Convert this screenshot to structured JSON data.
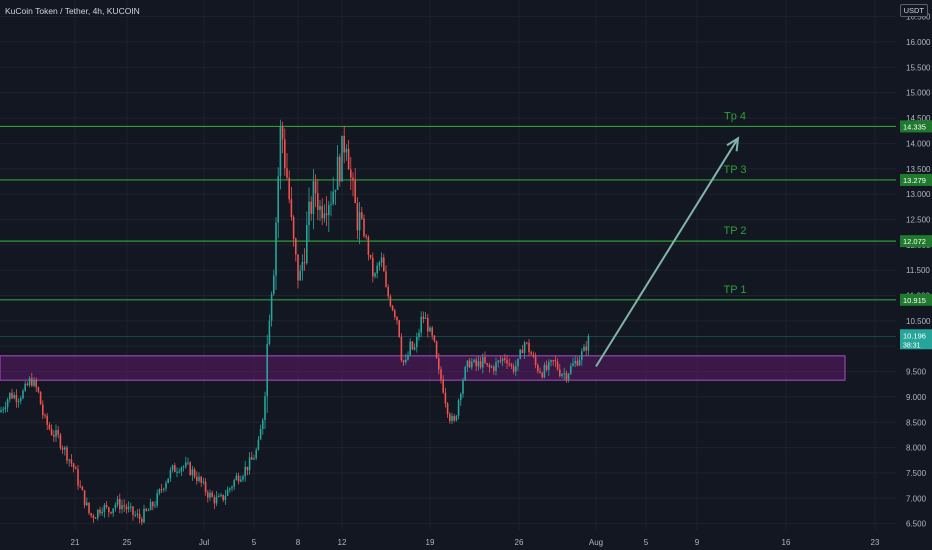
{
  "symbol": {
    "title": "KuCoin Token / Tether, 4h, KUCOIN"
  },
  "price_axis": {
    "currency": "USDT"
  },
  "colors": {
    "background": "#131722",
    "grid": "#1e222d",
    "axis_text": "#b2b5be",
    "up_candle": "#26a69a",
    "down_candle": "#ef5350",
    "tp_line": "#2e9e3a",
    "tp_label_bg": "#1f7a2e",
    "zone_fill": "#5b1a66",
    "zone_border": "#b04dc8",
    "arrow": "#7fb5a8",
    "current_price_bg": "#26a69a"
  },
  "chart_data": {
    "type": "candlestick",
    "title": "KuCoin Token / Tether, 4h, KUCOIN",
    "ylabel": "USDT",
    "ylim": [
      6.4,
      16.5
    ],
    "y_ticks": [
      "16.500",
      "16.000",
      "15.500",
      "15.000",
      "14.500",
      "14.000",
      "13.500",
      "13.000",
      "12.500",
      "12.000",
      "11.500",
      "11.000",
      "10.500",
      "10.000",
      "9.500",
      "9.000",
      "8.500",
      "8.000",
      "7.500",
      "7.000",
      "6.500"
    ],
    "x_ticks": [
      "21",
      "25",
      "Jul",
      "5",
      "8",
      "12",
      "19",
      "26",
      "Aug",
      "5",
      "9",
      "16",
      "23"
    ],
    "price_path": [
      [
        0,
        8.7
      ],
      [
        4,
        8.85
      ],
      [
        10,
        9.05
      ],
      [
        18,
        9.0
      ],
      [
        24,
        9.1
      ],
      [
        31,
        9.35
      ],
      [
        38,
        9.1
      ],
      [
        44,
        8.55
      ],
      [
        52,
        8.3
      ],
      [
        58,
        8.2
      ],
      [
        66,
        7.9
      ],
      [
        74,
        7.6
      ],
      [
        80,
        7.2
      ],
      [
        84,
        7.0
      ],
      [
        90,
        6.65
      ],
      [
        96,
        6.7
      ],
      [
        102,
        6.85
      ],
      [
        108,
        6.75
      ],
      [
        116,
        6.9
      ],
      [
        124,
        6.85
      ],
      [
        132,
        6.7
      ],
      [
        140,
        6.6
      ],
      [
        148,
        6.75
      ],
      [
        156,
        6.95
      ],
      [
        164,
        7.3
      ],
      [
        172,
        7.55
      ],
      [
        180,
        7.65
      ],
      [
        188,
        7.6
      ],
      [
        196,
        7.45
      ],
      [
        204,
        7.2
      ],
      [
        212,
        7.0
      ],
      [
        220,
        6.95
      ],
      [
        228,
        7.15
      ],
      [
        236,
        7.4
      ],
      [
        244,
        7.55
      ],
      [
        252,
        7.75
      ],
      [
        258,
        8.0
      ],
      [
        262,
        8.5
      ],
      [
        266,
        9.6
      ],
      [
        270,
        11.0
      ],
      [
        274,
        11.7
      ],
      [
        278,
        13.3
      ],
      [
        281,
        14.45
      ],
      [
        284,
        13.8
      ],
      [
        288,
        13.2
      ],
      [
        292,
        12.2
      ],
      [
        296,
        11.6
      ],
      [
        300,
        11.3
      ],
      [
        304,
        11.9
      ],
      [
        308,
        12.4
      ],
      [
        312,
        12.9
      ],
      [
        316,
        13.1
      ],
      [
        320,
        12.7
      ],
      [
        324,
        12.9
      ],
      [
        328,
        12.95
      ],
      [
        332,
        13.0
      ],
      [
        336,
        13.4
      ],
      [
        340,
        13.6
      ],
      [
        344,
        14.0
      ],
      [
        347,
        14.2
      ],
      [
        350,
        13.4
      ],
      [
        354,
        12.8
      ],
      [
        358,
        12.5
      ],
      [
        362,
        12.4
      ],
      [
        366,
        12.1
      ],
      [
        370,
        11.7
      ],
      [
        374,
        11.3
      ],
      [
        378,
        11.6
      ],
      [
        382,
        11.7
      ],
      [
        386,
        11.1
      ],
      [
        390,
        10.9
      ],
      [
        394,
        10.7
      ],
      [
        398,
        10.5
      ],
      [
        402,
        9.7
      ],
      [
        406,
        9.65
      ],
      [
        410,
        10.0
      ],
      [
        414,
        9.9
      ],
      [
        418,
        10.2
      ],
      [
        422,
        10.6
      ],
      [
        426,
        10.5
      ],
      [
        430,
        10.25
      ],
      [
        434,
        10.05
      ],
      [
        438,
        9.5
      ],
      [
        442,
        9.3
      ],
      [
        446,
        8.9
      ],
      [
        450,
        8.6
      ],
      [
        454,
        8.45
      ],
      [
        458,
        8.9
      ],
      [
        462,
        9.3
      ],
      [
        466,
        9.55
      ],
      [
        470,
        9.7
      ],
      [
        476,
        9.6
      ],
      [
        482,
        9.7
      ],
      [
        488,
        9.55
      ],
      [
        494,
        9.6
      ],
      [
        500,
        9.7
      ],
      [
        506,
        9.8
      ],
      [
        512,
        9.55
      ],
      [
        518,
        9.65
      ],
      [
        524,
        10.1
      ],
      [
        530,
        9.9
      ],
      [
        536,
        9.6
      ],
      [
        542,
        9.5
      ],
      [
        548,
        9.55
      ],
      [
        554,
        9.7
      ],
      [
        560,
        9.5
      ],
      [
        566,
        9.45
      ],
      [
        572,
        9.6
      ],
      [
        578,
        9.75
      ],
      [
        584,
        9.9
      ],
      [
        590,
        10.2
      ]
    ],
    "horizontal_levels": [
      {
        "label": "Tp 4",
        "value": 14.335,
        "value_text": "14.335"
      },
      {
        "label": "TP 3",
        "value": 13.279,
        "value_text": "13.279"
      },
      {
        "label": "TP 2",
        "value": 12.072,
        "value_text": "12.072"
      },
      {
        "label": "TP 1",
        "value": 10.915,
        "value_text": "10.915"
      }
    ],
    "support_zone": {
      "low": 9.33,
      "high": 9.81
    },
    "projection_arrow": {
      "from": 9.6,
      "to": 14.1
    },
    "current_price": {
      "value": 10.196,
      "value_text": "10.196",
      "countdown": "38:31"
    }
  }
}
